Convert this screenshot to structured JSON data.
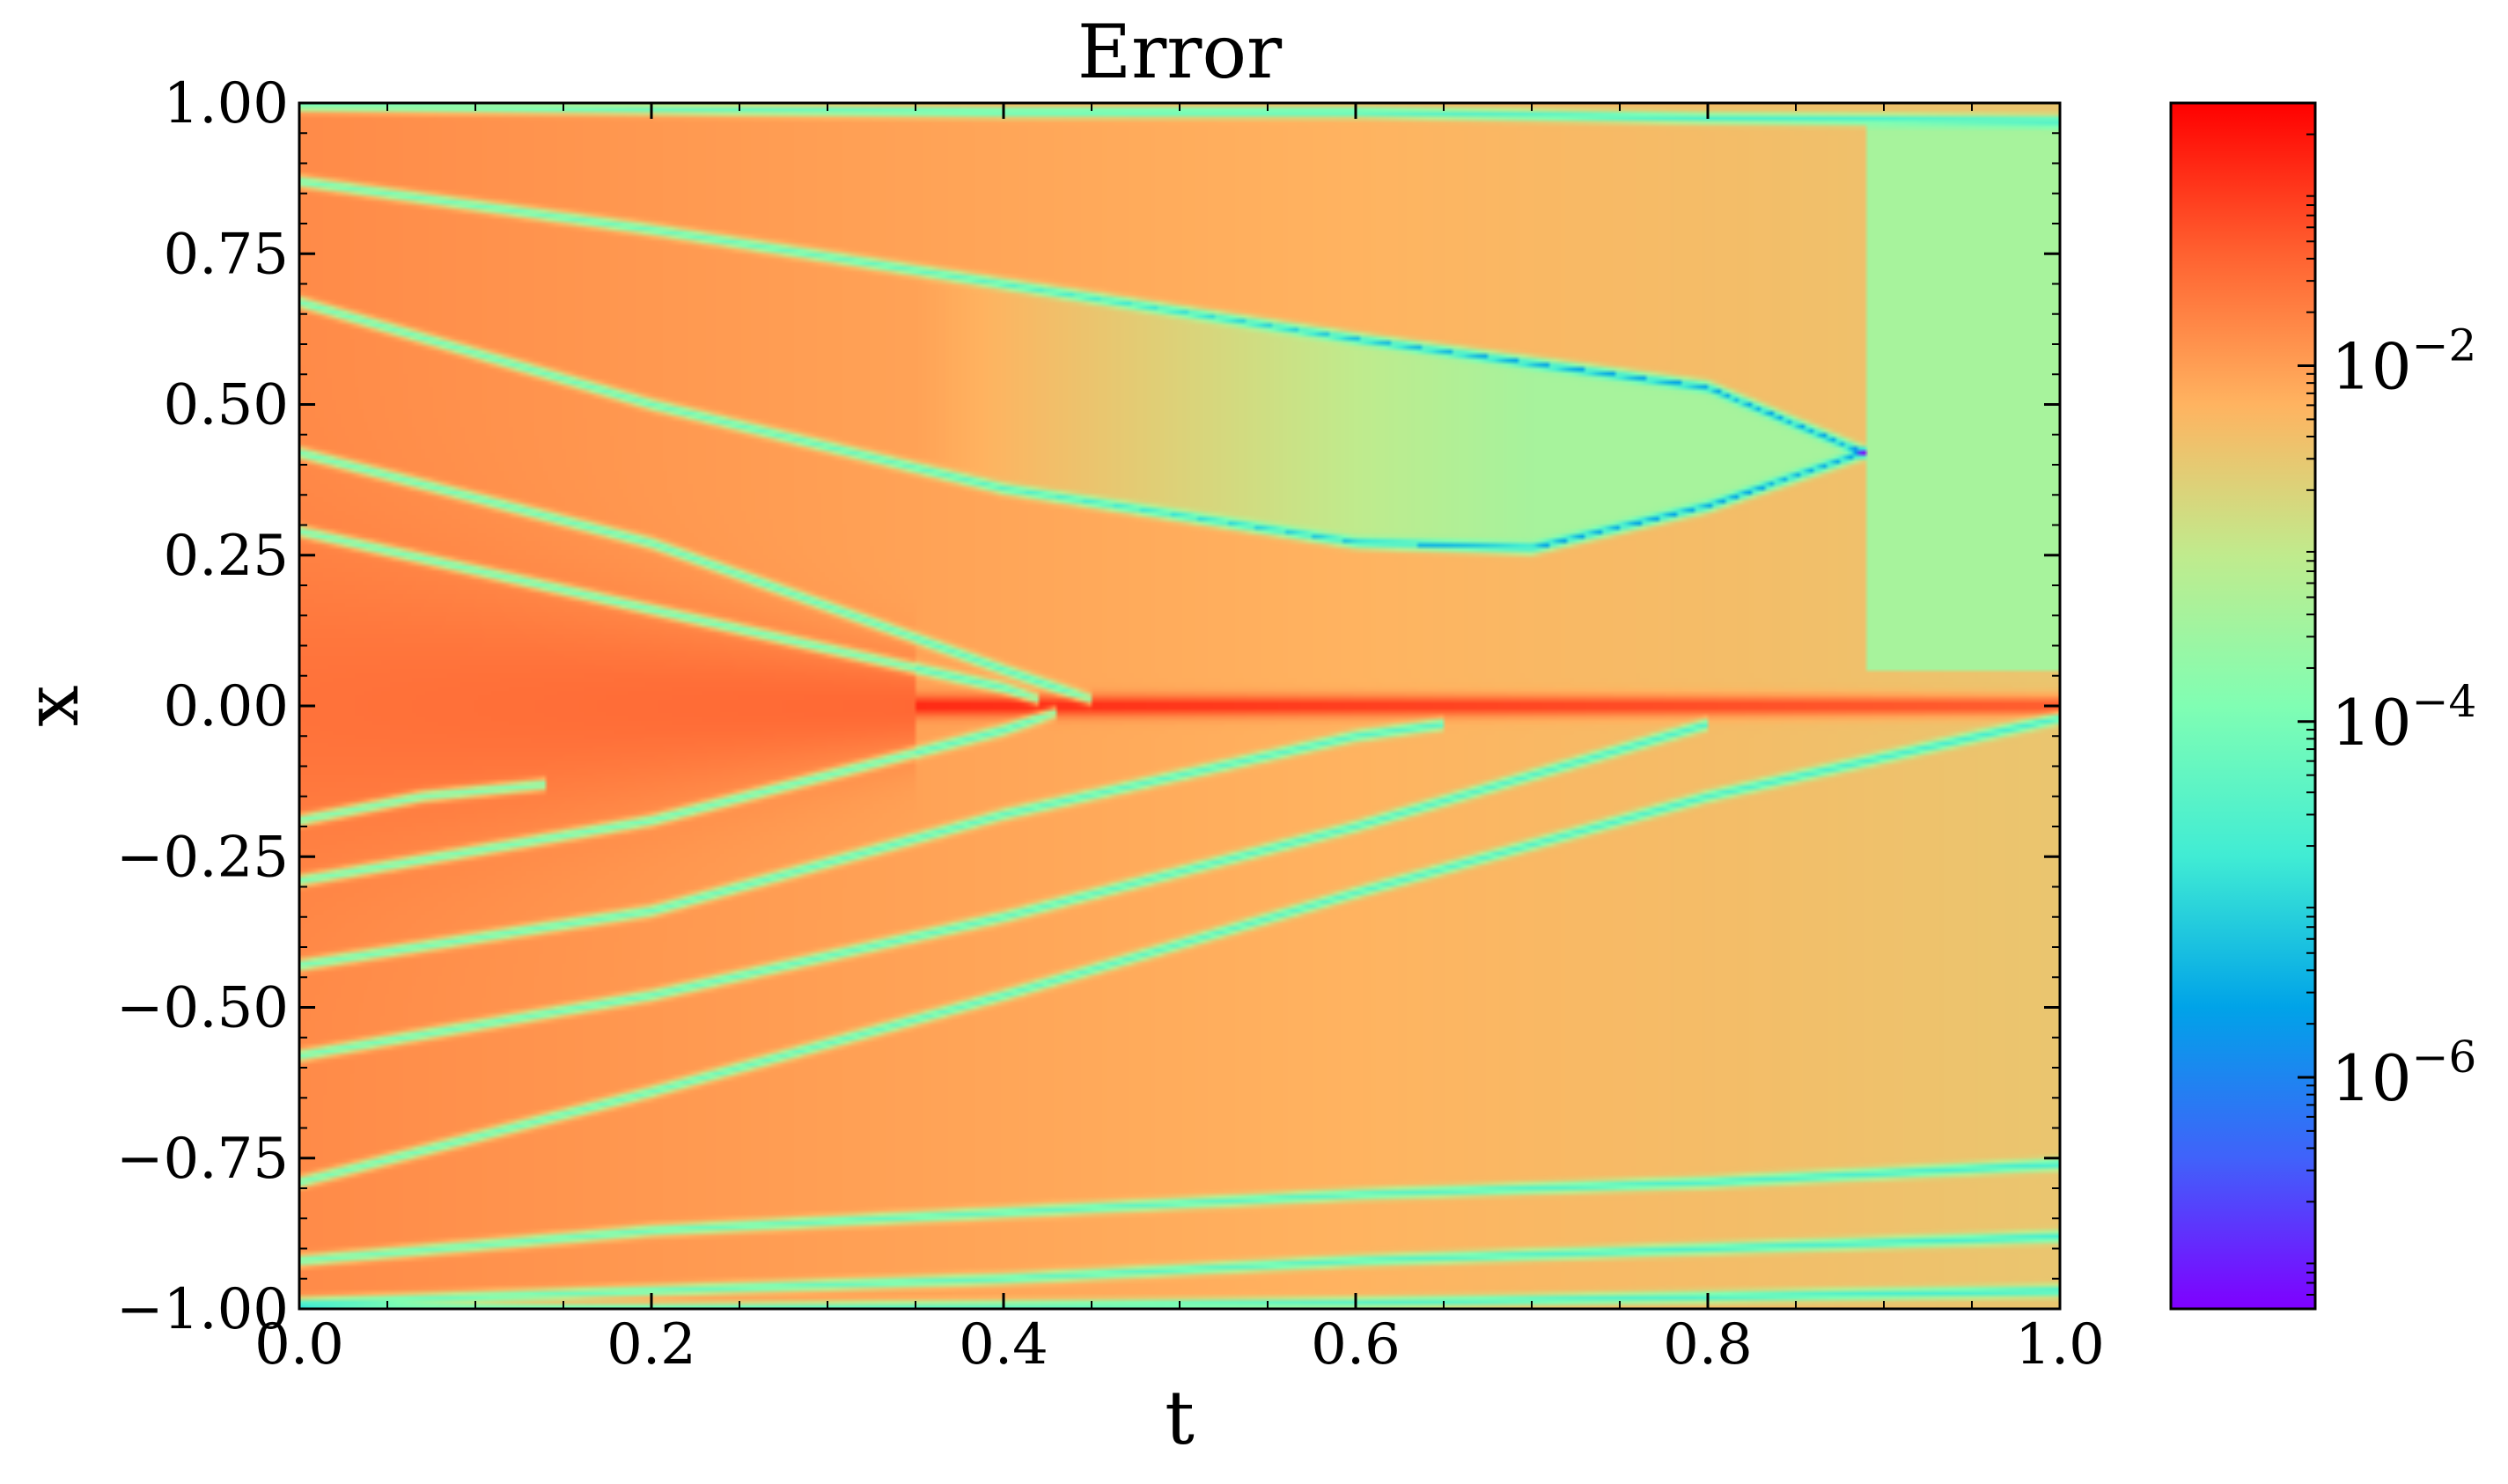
{
  "chart_data": {
    "type": "heatmap",
    "title": "Error",
    "xlabel": "t",
    "ylabel": "x",
    "xlim": [
      0.0,
      1.0
    ],
    "ylim": [
      -1.0,
      1.0
    ],
    "x_ticks": [
      0.0,
      0.2,
      0.4,
      0.6,
      0.8,
      1.0
    ],
    "x_tick_labels": [
      "0.0",
      "0.2",
      "0.4",
      "0.6",
      "0.8",
      "1.0"
    ],
    "y_ticks": [
      1.0,
      0.75,
      0.5,
      0.25,
      0.0,
      -0.25,
      -0.5,
      -0.75,
      -1.0
    ],
    "y_tick_labels": [
      "1.00",
      "0.75",
      "0.50",
      "0.25",
      "0.00",
      "−0.25",
      "−0.50",
      "−0.75",
      "−1.00"
    ],
    "colorbar": {
      "scale": "log",
      "colormap": "rainbow",
      "range": [
        5e-08,
        0.3
      ],
      "ticks": [
        0.01,
        0.0001,
        1e-06
      ],
      "tick_labels": [
        {
          "base": "10",
          "exp": "−2"
        },
        {
          "base": "10",
          "exp": "−4"
        },
        {
          "base": "10",
          "exp": "−6"
        }
      ]
    },
    "background_log10_error": {
      "left_t0": -1.8,
      "right_t1": -2.5,
      "upper_right_region": -3.4
    },
    "features": {
      "peak_line": {
        "x": 0.0,
        "t_start": 0.35,
        "t_end": 1.0,
        "log10_error": -0.6
      },
      "low_error_curves": [
        {
          "t": [
            0.0,
            0.2,
            0.4,
            0.6,
            0.8,
            0.89
          ],
          "x": [
            0.87,
            0.79,
            0.7,
            0.61,
            0.53,
            0.42
          ]
        },
        {
          "t": [
            0.0,
            0.2,
            0.4,
            0.6,
            0.7,
            0.8,
            0.89
          ],
          "x": [
            0.67,
            0.5,
            0.36,
            0.27,
            0.26,
            0.33,
            0.42
          ]
        },
        {
          "t": [
            0.0,
            0.2,
            0.4,
            0.45
          ],
          "x": [
            0.42,
            0.27,
            0.06,
            0.01
          ]
        },
        {
          "t": [
            0.0,
            0.2,
            0.4,
            0.42
          ],
          "x": [
            0.29,
            0.16,
            0.03,
            0.01
          ]
        },
        {
          "t": [
            0.0,
            0.07,
            0.14
          ],
          "x": [
            -0.19,
            -0.15,
            -0.13
          ]
        },
        {
          "t": [
            0.0,
            0.2,
            0.4,
            0.43
          ],
          "x": [
            -0.29,
            -0.19,
            -0.04,
            -0.01
          ]
        },
        {
          "t": [
            0.0,
            0.2,
            0.4,
            0.6,
            0.65
          ],
          "x": [
            -0.43,
            -0.34,
            -0.18,
            -0.05,
            -0.03
          ]
        },
        {
          "t": [
            0.0,
            0.2,
            0.4,
            0.6,
            0.8
          ],
          "x": [
            -0.58,
            -0.48,
            -0.35,
            -0.2,
            -0.03
          ]
        },
        {
          "t": [
            0.0,
            0.2,
            0.4,
            0.6,
            0.8,
            1.0
          ],
          "x": [
            -0.79,
            -0.64,
            -0.48,
            -0.31,
            -0.15,
            -0.02
          ]
        },
        {
          "t": [
            0.0,
            0.2,
            0.4,
            0.6,
            0.8,
            1.0
          ],
          "x": [
            -0.92,
            -0.87,
            -0.84,
            -0.81,
            -0.79,
            -0.76
          ]
        },
        {
          "t": [
            0.0,
            0.2,
            0.4,
            0.6,
            0.8,
            1.0
          ],
          "x": [
            -0.99,
            -0.97,
            -0.95,
            -0.92,
            -0.9,
            -0.88
          ]
        },
        {
          "t": [
            0.0,
            0.2,
            0.4,
            0.6,
            0.8,
            1.0
          ],
          "x": [
            -1.0,
            -0.999,
            -0.995,
            -0.99,
            -0.98,
            -0.97
          ]
        },
        {
          "t": [
            0.0,
            0.2,
            0.4,
            0.6,
            0.8,
            1.0
          ],
          "x": [
            0.995,
            0.99,
            0.985,
            0.985,
            0.975,
            0.97
          ]
        }
      ]
    }
  }
}
